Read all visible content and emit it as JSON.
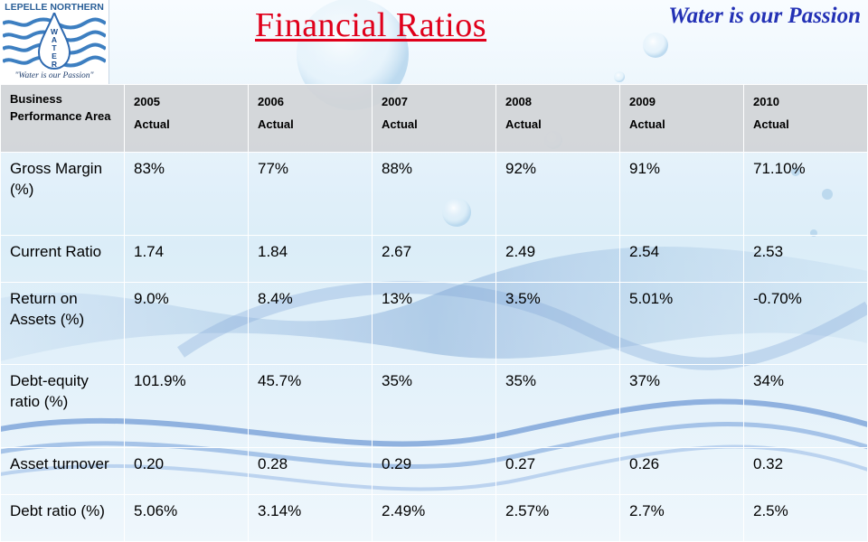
{
  "logo": {
    "name": "LEPELLE NORTHERN",
    "letters": [
      "W",
      "A",
      "T",
      "E",
      "R"
    ],
    "motto": "\"Water is our Passion\""
  },
  "title": "Financial  Ratios",
  "tagline": "Water is our Passion",
  "table": {
    "header_area": "Business Performance Area",
    "columns": [
      {
        "year": "2005",
        "label": "Actual"
      },
      {
        "year": "2006",
        "label": "Actual"
      },
      {
        "year": "2007",
        "label": "Actual"
      },
      {
        "year": "2008",
        "label": "Actual"
      },
      {
        "year": "2009",
        "label": "Actual"
      },
      {
        "year": "2010",
        "label": "Actual"
      }
    ],
    "rows": [
      {
        "label": "Gross Margin (%)",
        "values": [
          "83%",
          "77%",
          "88%",
          "92%",
          "91%",
          "71.10%"
        ]
      },
      {
        "label": "Current Ratio",
        "values": [
          "1.74",
          "1.84",
          "2.67",
          "2.49",
          "2.54",
          "2.53"
        ]
      },
      {
        "label": "Return on Assets (%)",
        "values": [
          "9.0%",
          "8.4%",
          "13%",
          "3.5%",
          "5.01%",
          "-0.70%"
        ]
      },
      {
        "label": "Debt-equity ratio (%)",
        "values": [
          "101.9%",
          "45.7%",
          "35%",
          "35%",
          "37%",
          "34%"
        ]
      },
      {
        "label": "Asset turnover",
        "values": [
          "0.20",
          "0.28",
          "0.29",
          "0.27",
          "0.26",
          "0.32"
        ]
      },
      {
        "label": "Debt ratio (%)",
        "values": [
          "5.06%",
          "3.14%",
          "2.49%",
          "2.57%",
          "2.7%",
          "2.5%"
        ]
      }
    ]
  },
  "colors": {
    "title": "#e0001b",
    "tagline": "#2331b5",
    "header_bg": "#d2d4d7"
  }
}
